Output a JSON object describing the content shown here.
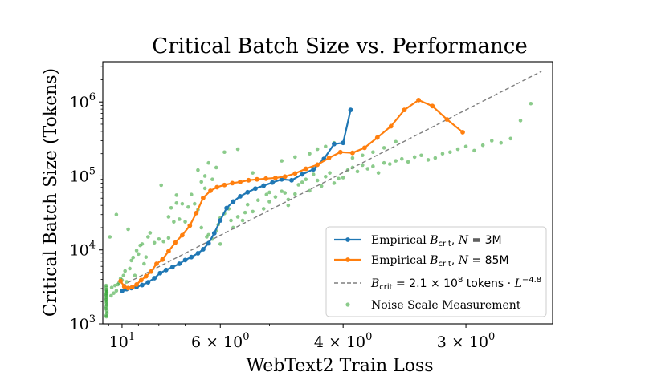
{
  "chart_data": {
    "type": "scatter",
    "title": "Critical Batch Size vs. Performance",
    "xlabel": "WebText2 Train Loss",
    "ylabel": "Critical Batch Size (Tokens)",
    "x_scale": "reciprocal (loss decreases to the right)",
    "y_scale": "log",
    "xlim": [
      11.5,
      2.55
    ],
    "ylim": [
      1000,
      3500000
    ],
    "x_ticks": [
      {
        "value": 10,
        "label": "10",
        "sup": "1"
      },
      {
        "value": 6,
        "label": "6 × 10",
        "sup": "0"
      },
      {
        "value": 4,
        "label": "4 × 10",
        "sup": "0"
      },
      {
        "value": 3,
        "label": "3 × 10",
        "sup": "0"
      }
    ],
    "y_ticks": [
      {
        "value": 1000,
        "label": "10",
        "sup": "3"
      },
      {
        "value": 10000,
        "label": "10",
        "sup": "4"
      },
      {
        "value": 100000,
        "label": "10",
        "sup": "5"
      },
      {
        "value": 1000000,
        "label": "10",
        "sup": "6"
      }
    ],
    "grid": false,
    "legend_position": "lower-right",
    "series": [
      {
        "name": "Empirical B_crit, N = 3M",
        "legend": {
          "pre": "Empirical ",
          "var": "B",
          "sub": "crit",
          "post": ", ",
          "nvar": "N",
          "eq": " = 3M"
        },
        "kind": "line-marker",
        "color": "#1f77b4",
        "x": [
          9.99,
          9.7,
          9.4,
          9.1,
          8.8,
          8.5,
          8.2,
          7.95,
          7.7,
          7.45,
          7.2,
          7.0,
          6.8,
          6.6,
          6.45,
          6.3,
          6.15,
          6.0,
          5.85,
          5.7,
          5.55,
          5.4,
          5.25,
          5.1,
          4.95,
          4.8,
          4.65,
          4.5,
          4.35,
          4.22,
          4.1,
          4.0,
          3.92
        ],
        "y": [
          2800,
          2950,
          3050,
          3150,
          3350,
          3650,
          4150,
          4850,
          5350,
          5850,
          6500,
          7300,
          8000,
          9000,
          10200,
          12300,
          16800,
          25000,
          36800,
          45000,
          53000,
          60200,
          67500,
          74000,
          81500,
          90000,
          87500,
          105000,
          123000,
          170000,
          270000,
          280000,
          780000
        ]
      },
      {
        "name": "Empirical B_crit, N = 85M",
        "legend": {
          "pre": "Empirical ",
          "var": "B",
          "sub": "crit",
          "post": ", ",
          "nvar": "N",
          "eq": " = 85M"
        },
        "kind": "line-marker",
        "color": "#ff7f0e",
        "x": [
          10.1,
          9.85,
          9.6,
          9.35,
          9.1,
          8.85,
          8.6,
          8.35,
          8.1,
          7.85,
          7.6,
          7.35,
          7.1,
          6.85,
          6.65,
          6.45,
          6.25,
          6.08,
          5.9,
          5.72,
          5.55,
          5.38,
          5.22,
          5.06,
          4.9,
          4.75,
          4.6,
          4.45,
          4.3,
          4.16,
          4.03,
          3.9,
          3.78,
          3.66,
          3.54,
          3.43,
          3.32,
          3.22,
          3.12,
          3.02
        ],
        "y": [
          3800,
          3200,
          3050,
          3150,
          3400,
          3900,
          4400,
          5100,
          6500,
          7400,
          9600,
          12500,
          15800,
          21300,
          31500,
          50500,
          63000,
          70500,
          75500,
          80000,
          83000,
          87500,
          90000,
          92000,
          94000,
          98000,
          108000,
          125000,
          142000,
          175000,
          210000,
          205000,
          240000,
          330000,
          470000,
          780000,
          1060000,
          880000,
          580000,
          390000
        ]
      },
      {
        "name": "B_crit = 2.1 × 10^8 tokens · L^-4.8",
        "legend": {
          "var": "B",
          "sub": "crit",
          "eq": " = 2.1 × 10",
          "sup1": "8",
          "mid": " tokens · ",
          "lvar": "L",
          "sup2": "−4.8"
        },
        "kind": "dashed-line",
        "color": "#7f7f7f",
        "x": [
          10.0,
          2.6
        ],
        "y": [
          3300,
          2600000
        ]
      },
      {
        "name": "Noise Scale Measurement",
        "legend": {
          "pre": "Noise Scale Measurement"
        },
        "kind": "scatter",
        "color": "#2ca02c",
        "x": [
          11.2,
          11.15,
          11.2,
          11.18,
          11.22,
          11.17,
          11.21,
          11.16,
          11.19,
          11.2,
          11.14,
          11.23,
          11.18,
          11.2,
          11.17,
          11.21,
          11.19,
          11.16,
          11.2,
          11.18,
          10.8,
          10.75,
          10.6,
          10.5,
          10.4,
          10.3,
          10.2,
          10.1,
          10.0,
          9.9,
          9.8,
          9.6,
          9.5,
          9.4,
          9.3,
          9.1,
          9.0,
          8.9,
          8.8,
          8.6,
          8.5,
          8.4,
          8.2,
          8.0,
          7.8,
          7.6,
          7.5,
          7.3,
          7.2,
          7.0,
          6.9,
          6.8,
          6.7,
          6.6,
          6.5,
          6.4,
          6.35,
          6.3,
          6.2,
          6.1,
          6.05,
          6.0,
          5.9,
          5.8,
          5.75,
          5.7,
          5.6,
          5.5,
          5.45,
          5.4,
          5.3,
          5.2,
          5.1,
          5.05,
          5.0,
          4.9,
          4.8,
          4.75,
          4.7,
          4.6,
          4.55,
          4.5,
          4.45,
          4.4,
          4.35,
          4.3,
          4.25,
          4.2,
          4.15,
          4.1,
          4.05,
          4.0,
          3.95,
          3.9,
          3.85,
          3.8,
          3.75,
          3.7,
          3.65,
          3.6,
          3.55,
          3.5,
          3.45,
          3.4,
          3.35,
          3.3,
          3.25,
          3.2,
          3.15,
          3.1,
          3.05,
          3.0,
          2.95,
          2.9,
          2.85,
          2.8,
          2.75,
          2.7,
          2.65,
          6.6,
          6.4,
          6.3,
          6.2,
          6.1,
          7.1,
          7.3,
          7.9,
          5.9,
          5.6,
          4.8,
          4.6,
          4.4,
          4.3,
          4.2,
          4.1,
          3.9,
          3.8,
          3.7,
          3.6,
          3.5,
          5.3,
          5.0,
          4.7,
          6.0,
          6.5,
          8.7,
          9.2,
          9.7,
          10.4,
          10.9,
          7.6,
          7.4
        ],
        "y": [
          1300,
          1500,
          1700,
          1900,
          2100,
          2300,
          2500,
          2700,
          2900,
          3100,
          1400,
          1600,
          2000,
          2400,
          2800,
          3300,
          1250,
          1800,
          2200,
          2600,
          2400,
          3100,
          2600,
          3300,
          2800,
          3400,
          3600,
          4100,
          3900,
          4500,
          5200,
          19000,
          5600,
          7200,
          7900,
          9800,
          8800,
          11500,
          12000,
          8000,
          15000,
          17000,
          12500,
          14000,
          13000,
          14500,
          37000,
          43000,
          26000,
          24000,
          38000,
          56000,
          42000,
          35000,
          83000,
          68000,
          15000,
          16000,
          14000,
          18000,
          22000,
          27000,
          31000,
          36000,
          25000,
          20000,
          28000,
          25000,
          32000,
          41000,
          33000,
          47000,
          36000,
          56000,
          45000,
          52000,
          62000,
          59000,
          48000,
          57000,
          76000,
          82000,
          90000,
          63000,
          105000,
          87000,
          73000,
          98000,
          110000,
          80000,
          92000,
          95000,
          120000,
          130000,
          115000,
          140000,
          125000,
          135000,
          110000,
          150000,
          145000,
          160000,
          170000,
          155000,
          180000,
          190000,
          165000,
          175000,
          200000,
          210000,
          230000,
          250000,
          220000,
          260000,
          300000,
          280000,
          320000,
          560000,
          950000,
          120000,
          100000,
          150000,
          90000,
          130000,
          42000,
          55000,
          75000,
          210000,
          230000,
          160000,
          180000,
          200000,
          230000,
          250000,
          280000,
          175000,
          190000,
          210000,
          240000,
          290000,
          110000,
          60000,
          40000,
          12000,
          20000,
          6500,
          4500,
          3700,
          30000,
          15000,
          28000,
          24000
        ]
      }
    ]
  }
}
